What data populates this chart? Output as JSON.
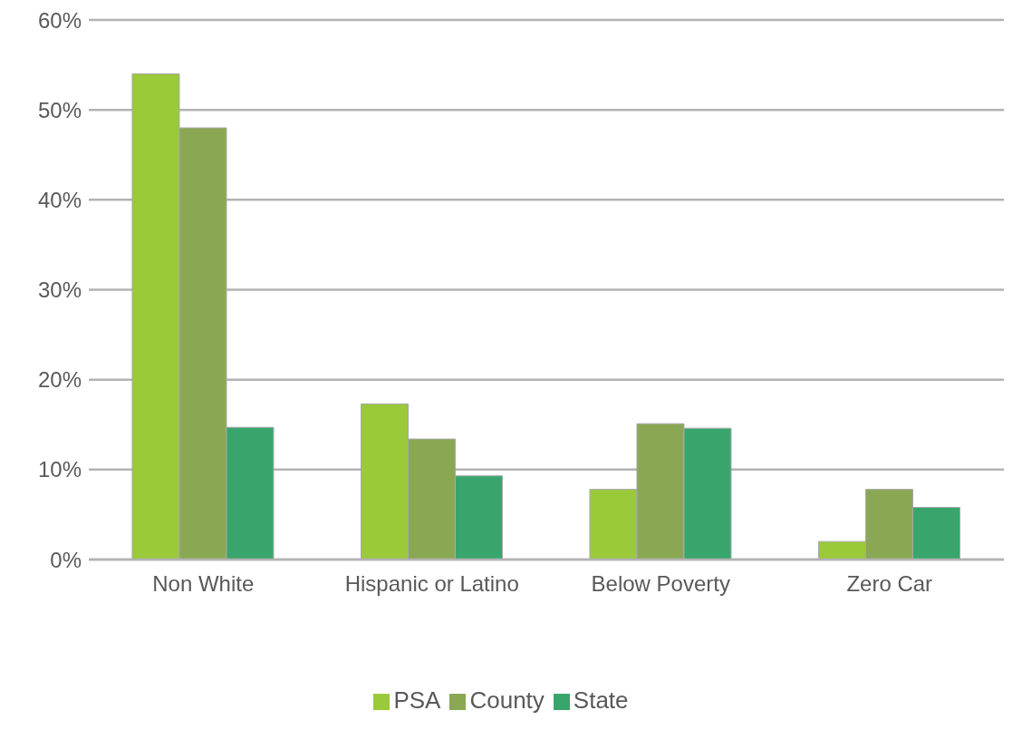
{
  "chart_data": {
    "type": "bar",
    "categories": [
      "Non White",
      "Hispanic or Latino",
      "Below Poverty",
      "Zero Car"
    ],
    "series": [
      {
        "name": "PSA",
        "color": "#9ac93a",
        "values": [
          54,
          17.3,
          7.8,
          2
        ]
      },
      {
        "name": "County",
        "color": "#8aa853",
        "values": [
          48,
          13.4,
          15.1,
          7.8
        ]
      },
      {
        "name": "State",
        "color": "#38a66c",
        "values": [
          14.7,
          9.3,
          14.6,
          5.8
        ]
      }
    ],
    "ylim": [
      0,
      60
    ],
    "yticks": [
      {
        "value": 0,
        "label": "0%"
      },
      {
        "value": 10,
        "label": "10%"
      },
      {
        "value": 20,
        "label": "20%"
      },
      {
        "value": 30,
        "label": "30%"
      },
      {
        "value": 40,
        "label": "40%"
      },
      {
        "value": 50,
        "label": "50%"
      },
      {
        "value": 60,
        "label": "60%"
      }
    ],
    "grid": "y",
    "legend": "bottom"
  }
}
